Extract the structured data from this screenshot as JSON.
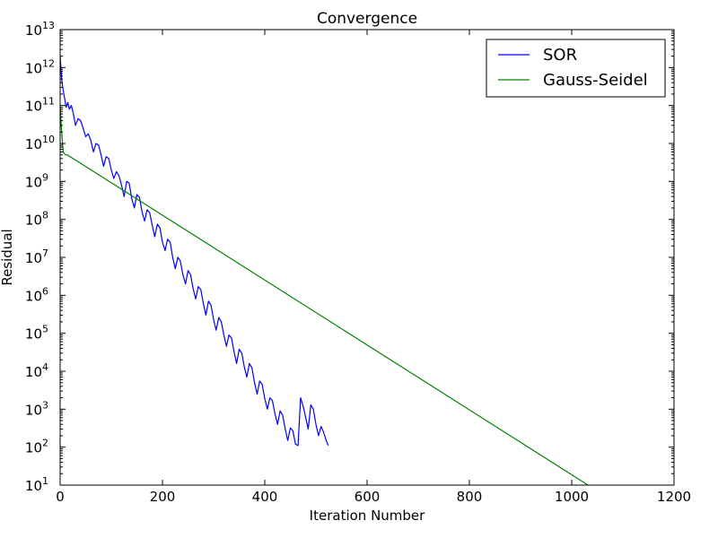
{
  "chart_data": {
    "type": "line",
    "title": "Convergence",
    "xlabel": "Iteration Number",
    "ylabel": "Residual",
    "xlim": [
      0,
      1200
    ],
    "ylim": [
      10,
      10000000000000
    ],
    "yscale": "log",
    "x_ticks": [
      0,
      200,
      400,
      600,
      800,
      1000,
      1200
    ],
    "y_tick_exponents": [
      1,
      2,
      3,
      4,
      5,
      6,
      7,
      8,
      9,
      10,
      11,
      12,
      13
    ],
    "y_tick_base": "10",
    "grid": false,
    "legend": "top-right",
    "series": [
      {
        "name": "SOR",
        "color": "#0000ff",
        "description_points": "x,y in data units",
        "x": [
          0,
          3,
          6,
          9,
          12,
          15,
          18,
          22,
          26,
          30,
          35,
          40,
          45,
          50,
          55,
          60,
          65,
          70,
          75,
          80,
          85,
          90,
          95,
          100,
          105,
          110,
          115,
          120,
          125,
          130,
          135,
          140,
          145,
          150,
          155,
          160,
          165,
          170,
          175,
          180,
          185,
          190,
          195,
          200,
          205,
          210,
          215,
          220,
          225,
          230,
          235,
          240,
          245,
          250,
          255,
          260,
          265,
          270,
          275,
          280,
          285,
          290,
          295,
          300,
          305,
          310,
          315,
          320,
          325,
          330,
          335,
          340,
          345,
          350,
          355,
          360,
          365,
          370,
          375,
          380,
          385,
          390,
          395,
          400,
          405,
          410,
          415,
          420,
          425,
          430,
          435,
          440,
          445,
          450,
          455,
          460,
          465,
          470,
          475,
          480,
          485,
          490,
          495,
          500,
          505,
          510,
          515,
          520,
          524
        ],
        "y": [
          2000000000000,
          500000000000,
          250000000000,
          150000000000,
          90000000000,
          120000000000,
          80000000000,
          100000000000,
          60000000000,
          30000000000,
          45000000000,
          40000000000,
          25000000000,
          15000000000,
          18000000000,
          12000000000,
          6000000000,
          10000000000,
          9000000000,
          5000000000,
          2500000000,
          4500000000,
          4000000000,
          2000000000,
          1200000000,
          1800000000,
          1400000000,
          800000000,
          400000000,
          1000000000,
          900000000,
          350000000,
          200000000,
          450000000,
          380000000,
          160000000,
          90000000,
          180000000,
          150000000,
          70000000,
          35000000,
          75000000,
          60000000,
          25000000,
          15000000,
          30000000,
          25000000,
          10000000,
          5000000,
          10000000,
          8000000,
          3500000,
          2000000,
          4500000,
          3500000,
          1500000,
          800000,
          1700000,
          1400000,
          600000,
          300000,
          700000,
          550000,
          230000,
          120000,
          260000,
          200000,
          90000,
          45000,
          90000,
          75000,
          32000,
          16000,
          38000,
          30000,
          13000,
          7000,
          16000,
          12000,
          5000,
          2500,
          5500,
          4500,
          1900,
          1000,
          2000,
          1700,
          750,
          400,
          900,
          700,
          300,
          150,
          320,
          270,
          120,
          110,
          2000,
          1200,
          600,
          300,
          1300,
          1000,
          400,
          200,
          350,
          250,
          150,
          110
        ]
      },
      {
        "name": "Gauss-Seidel",
        "color": "#008000",
        "x": [
          0,
          3,
          6,
          10,
          14,
          1032
        ],
        "y": [
          100000000000,
          20000000000,
          6000000000,
          5000000000,
          5000000000,
          10
        ]
      }
    ]
  }
}
